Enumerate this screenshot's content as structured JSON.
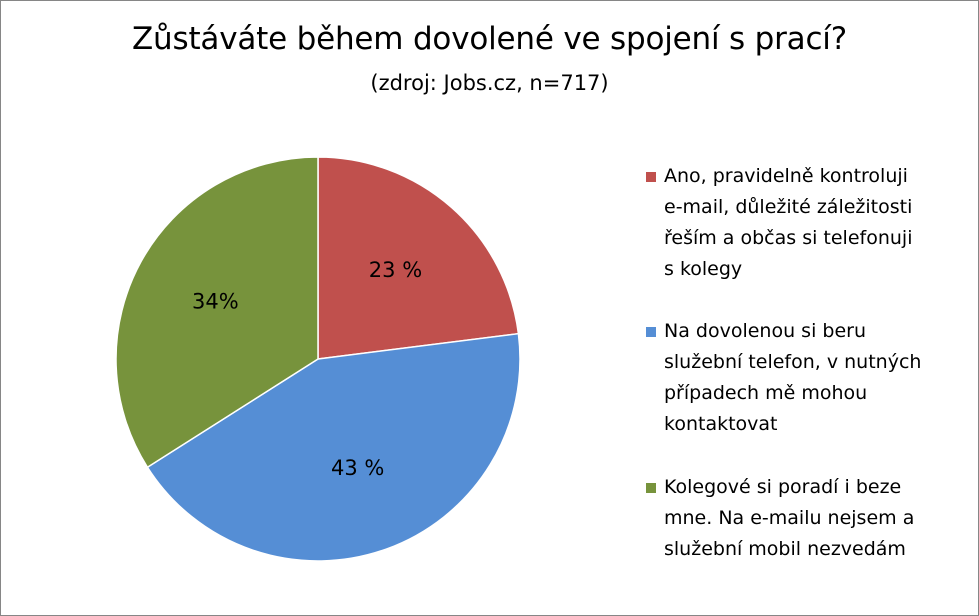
{
  "chart_data": {
    "type": "pie",
    "title": "Zůstáváte během dovolené ve spojení s prací?",
    "subtitle": "(zdroj: Jobs.cz,  n=717)",
    "slices": [
      {
        "label": "Ano, pravidelně kontroluji\ne-mail, důležité záležitosti\nřeším a občas si telefonuji\ns kolegy",
        "value": 23,
        "value_label": "23 %",
        "color": "#C0504D"
      },
      {
        "label": "Na dovolenou si beru\nslužební telefon, v nutných\npřípadech mě mohou\nkontaktovat",
        "value": 43,
        "value_label": "43 %",
        "color": "#558ED5"
      },
      {
        "label": "Kolegové si poradí i beze\nmne. Na e-mailu nejsem a\nslužební mobil nezvedám",
        "value": 34,
        "value_label": "34%",
        "color": "#77933C"
      }
    ],
    "legend_position": "right"
  }
}
